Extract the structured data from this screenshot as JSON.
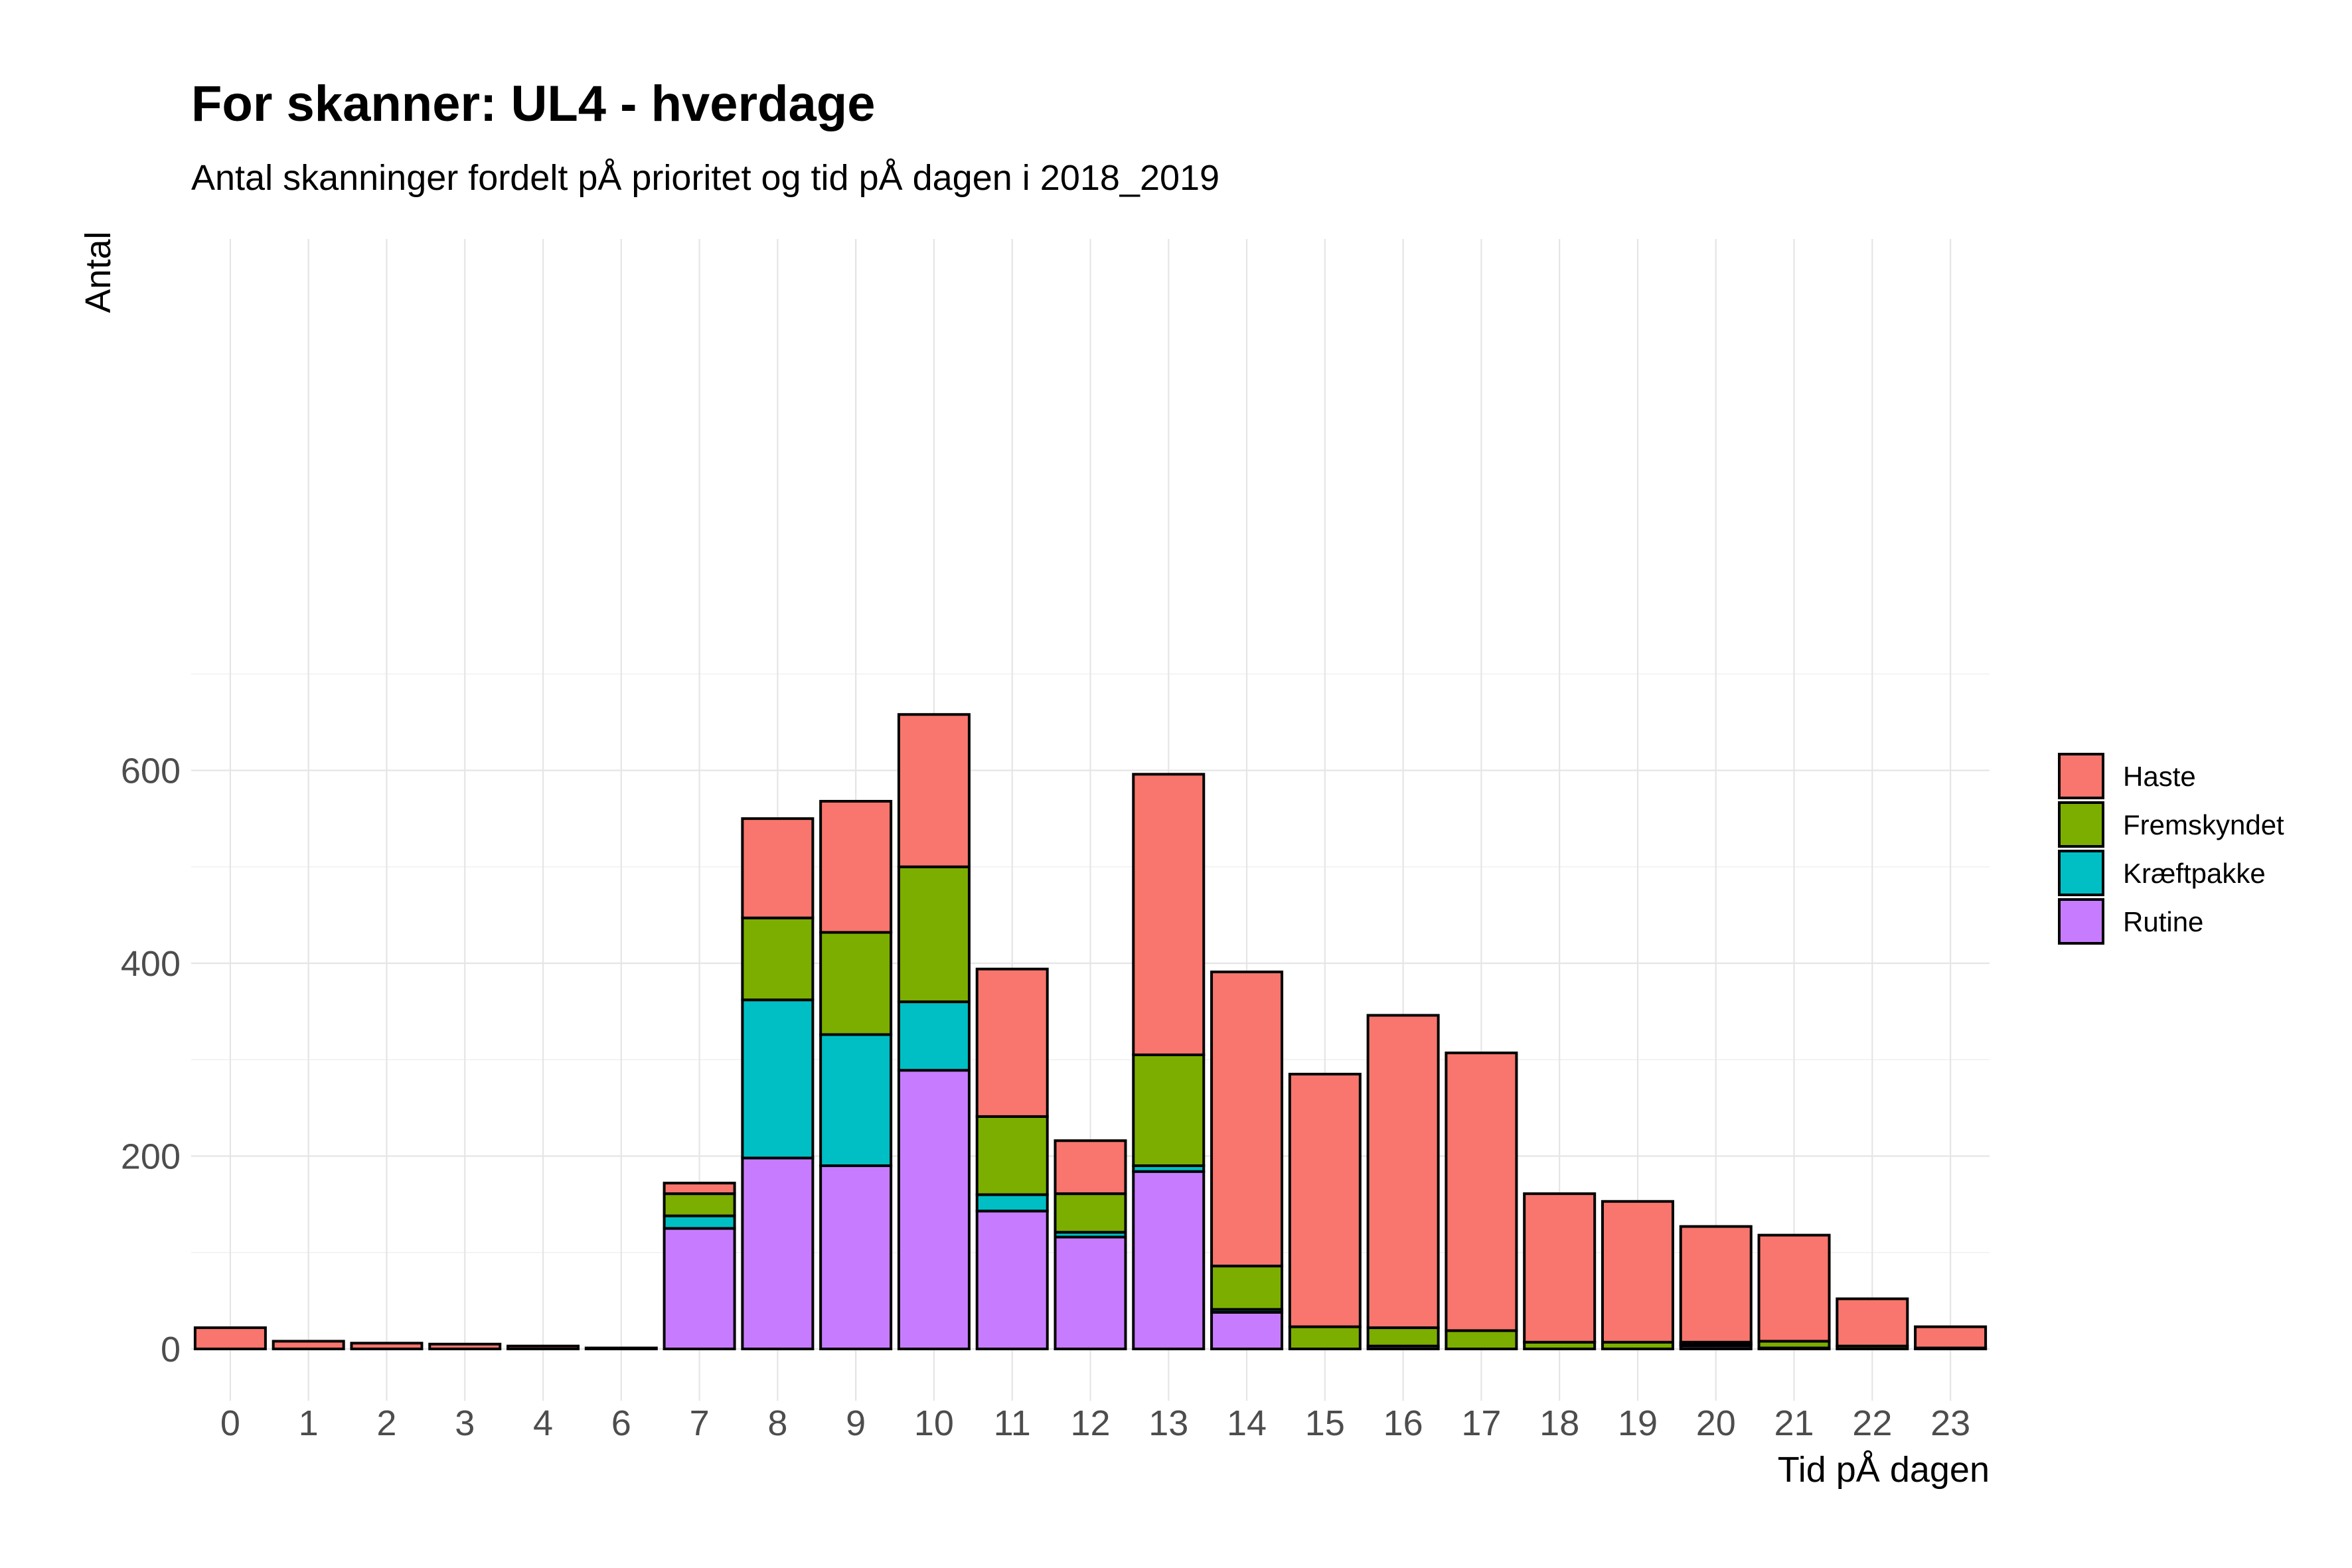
{
  "chart_data": {
    "type": "bar",
    "stacked": true,
    "title": "For skanner: UL4 - hverdage",
    "subtitle": "Antal skanninger fordelt pÅ prioritet og tid pÅ dagen i 2018_2019",
    "xlabel": "Tid pÅ dagen",
    "ylabel": "Antal",
    "ylim": [
      -60,
      690
    ],
    "yticks": [
      0,
      200,
      400,
      600
    ],
    "grid": true,
    "legend_position": "right",
    "categories": [
      "0",
      "1",
      "2",
      "3",
      "4",
      "6",
      "7",
      "8",
      "9",
      "10",
      "11",
      "12",
      "13",
      "14",
      "15",
      "16",
      "17",
      "18",
      "19",
      "20",
      "21",
      "22",
      "23"
    ],
    "series": [
      {
        "name": "Rutine",
        "color": "#C77CFF",
        "values": [
          0,
          0,
          0,
          0,
          0,
          0,
          125,
          198,
          190,
          289,
          143,
          116,
          184,
          38,
          0,
          3,
          0,
          0,
          0,
          3,
          1,
          0,
          0
        ]
      },
      {
        "name": "Kræftpakke",
        "color": "#00BFC4",
        "values": [
          0,
          0,
          0,
          0,
          0,
          0,
          13,
          164,
          136,
          71,
          17,
          5,
          6,
          3,
          0,
          0,
          0,
          0,
          0,
          2,
          0,
          0,
          0
        ]
      },
      {
        "name": "Fremskyndet",
        "color": "#7CAE00",
        "values": [
          0,
          0,
          0,
          0,
          0,
          0,
          23,
          85,
          106,
          140,
          81,
          40,
          115,
          45,
          23,
          19,
          19,
          7,
          7,
          2,
          7,
          3,
          1
        ]
      },
      {
        "name": "Haste",
        "color": "#F8766D",
        "values": [
          22,
          8,
          6,
          5,
          3,
          1,
          11,
          103,
          136,
          158,
          153,
          55,
          291,
          305,
          262,
          324,
          288,
          154,
          146,
          120,
          110,
          49,
          22
        ]
      }
    ]
  }
}
